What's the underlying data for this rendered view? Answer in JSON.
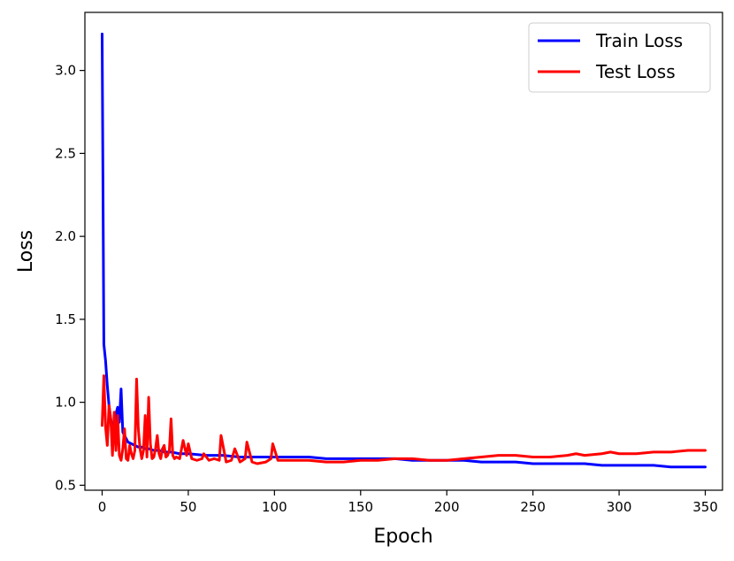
{
  "chart_data": {
    "type": "line",
    "title": "",
    "xlabel": "Epoch",
    "ylabel": "Loss",
    "xlim": [
      -10,
      360
    ],
    "ylim": [
      0.47,
      3.35
    ],
    "xticks": [
      0,
      50,
      100,
      150,
      200,
      250,
      300,
      350
    ],
    "yticks": [
      0.5,
      1.0,
      1.5,
      2.0,
      2.5,
      3.0
    ],
    "xtick_labels": [
      "0",
      "50",
      "100",
      "150",
      "200",
      "250",
      "300",
      "350"
    ],
    "ytick_labels": [
      "0.5",
      "1.0",
      "1.5",
      "2.0",
      "2.5",
      "3.0"
    ],
    "grid": false,
    "legend_position": "top-right",
    "series": [
      {
        "name": "Train Loss",
        "color": "#0000ff",
        "x": [
          0,
          1,
          2,
          3,
          4,
          5,
          6,
          7,
          8,
          9,
          10,
          11,
          12,
          13,
          14,
          15,
          17,
          19,
          21,
          23,
          25,
          27,
          30,
          33,
          36,
          40,
          45,
          50,
          60,
          70,
          80,
          90,
          100,
          110,
          120,
          130,
          140,
          150,
          160,
          170,
          180,
          190,
          200,
          210,
          220,
          230,
          240,
          250,
          260,
          270,
          280,
          290,
          300,
          310,
          320,
          330,
          340,
          350
        ],
        "y": [
          3.22,
          1.35,
          1.25,
          1.1,
          0.98,
          0.9,
          0.85,
          0.82,
          0.93,
          0.97,
          0.88,
          1.08,
          0.82,
          0.8,
          0.78,
          0.76,
          0.75,
          0.74,
          0.73,
          0.73,
          0.72,
          0.72,
          0.71,
          0.71,
          0.7,
          0.7,
          0.69,
          0.69,
          0.68,
          0.68,
          0.67,
          0.67,
          0.67,
          0.67,
          0.67,
          0.66,
          0.66,
          0.66,
          0.66,
          0.66,
          0.65,
          0.65,
          0.65,
          0.65,
          0.64,
          0.64,
          0.64,
          0.63,
          0.63,
          0.63,
          0.63,
          0.62,
          0.62,
          0.62,
          0.62,
          0.61,
          0.61,
          0.61
        ]
      },
      {
        "name": "Test Loss",
        "color": "#ff0000",
        "x": [
          0,
          1,
          2,
          3,
          4,
          5,
          6,
          7,
          8,
          9,
          10,
          11,
          12,
          13,
          14,
          15,
          16,
          17,
          18,
          19,
          20,
          21,
          22,
          23,
          24,
          25,
          26,
          27,
          28,
          29,
          30,
          31,
          32,
          33,
          34,
          35,
          36,
          37,
          38,
          39,
          40,
          41,
          42,
          43,
          45,
          47,
          49,
          50,
          52,
          55,
          58,
          59,
          62,
          65,
          68,
          69,
          72,
          75,
          77,
          80,
          83,
          84,
          87,
          90,
          95,
          98,
          99,
          102,
          110,
          120,
          130,
          140,
          150,
          160,
          170,
          180,
          190,
          200,
          210,
          220,
          230,
          240,
          250,
          260,
          270,
          275,
          280,
          290,
          295,
          300,
          310,
          320,
          330,
          340,
          350
        ],
        "y": [
          0.86,
          1.16,
          0.85,
          0.74,
          0.98,
          0.9,
          0.68,
          0.94,
          0.71,
          0.92,
          0.68,
          0.65,
          0.72,
          0.84,
          0.66,
          0.65,
          0.74,
          0.69,
          0.66,
          0.71,
          1.14,
          0.84,
          0.72,
          0.66,
          0.71,
          0.92,
          0.67,
          1.03,
          0.75,
          0.66,
          0.67,
          0.72,
          0.8,
          0.69,
          0.66,
          0.72,
          0.74,
          0.67,
          0.68,
          0.71,
          0.9,
          0.68,
          0.66,
          0.67,
          0.66,
          0.77,
          0.68,
          0.75,
          0.66,
          0.65,
          0.66,
          0.69,
          0.65,
          0.66,
          0.65,
          0.8,
          0.64,
          0.65,
          0.72,
          0.64,
          0.66,
          0.76,
          0.64,
          0.63,
          0.64,
          0.66,
          0.75,
          0.65,
          0.65,
          0.65,
          0.64,
          0.64,
          0.65,
          0.65,
          0.66,
          0.66,
          0.65,
          0.65,
          0.66,
          0.67,
          0.68,
          0.68,
          0.67,
          0.67,
          0.68,
          0.69,
          0.68,
          0.69,
          0.7,
          0.69,
          0.69,
          0.7,
          0.7,
          0.71,
          0.71
        ]
      }
    ]
  }
}
